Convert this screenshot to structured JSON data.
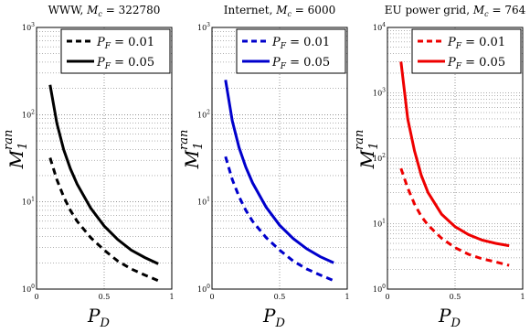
{
  "chart_data": [
    {
      "type": "line",
      "title": "WWW, M_c = 322780",
      "title_parts": {
        "prefix": "WWW, ",
        "symbol": "M",
        "subscript": "c",
        "suffix": " = 322780"
      },
      "xlabel": {
        "symbol": "P",
        "subscript": "D"
      },
      "ylabel": {
        "symbol": "M",
        "superscript": "ran",
        "subscript": "1"
      },
      "x_ticks": [
        "0",
        "0.5",
        "1"
      ],
      "xlim": [
        0,
        1
      ],
      "y_scale": "log",
      "ylim": [
        1,
        1000
      ],
      "y_ticks": [
        {
          "base": "10",
          "exp": "0"
        },
        {
          "base": "10",
          "exp": "1"
        },
        {
          "base": "10",
          "exp": "2"
        },
        {
          "base": "10",
          "exp": "3"
        }
      ],
      "grid": true,
      "legend_position": "top-right",
      "series": [
        {
          "name": "P_F = 0.01",
          "legend_label": {
            "symbol": "P",
            "subscript": "F",
            "value": " = 0.01"
          },
          "color": "#000000",
          "style": "dashed",
          "x": [
            0.1,
            0.15,
            0.2,
            0.25,
            0.3,
            0.4,
            0.5,
            0.6,
            0.7,
            0.8,
            0.9
          ],
          "y": [
            32,
            18,
            11.5,
            8,
            6,
            3.9,
            2.8,
            2.1,
            1.7,
            1.45,
            1.25
          ]
        },
        {
          "name": "P_F = 0.05",
          "legend_label": {
            "symbol": "P",
            "subscript": "F",
            "value": " = 0.05"
          },
          "color": "#000000",
          "style": "solid",
          "x": [
            0.1,
            0.15,
            0.2,
            0.25,
            0.3,
            0.4,
            0.5,
            0.6,
            0.7,
            0.8,
            0.9
          ],
          "y": [
            220,
            80,
            40,
            24,
            16,
            8.5,
            5.3,
            3.7,
            2.8,
            2.3,
            1.95
          ]
        }
      ]
    },
    {
      "type": "line",
      "title": "Internet, M_c = 6000",
      "title_parts": {
        "prefix": "Internet, ",
        "symbol": "M",
        "subscript": "c",
        "suffix": " = 6000"
      },
      "xlabel": {
        "symbol": "P",
        "subscript": "D"
      },
      "ylabel": {
        "symbol": "M",
        "superscript": "ran",
        "subscript": "1"
      },
      "x_ticks": [
        "0",
        "0.5",
        "1"
      ],
      "xlim": [
        0,
        1
      ],
      "y_scale": "log",
      "ylim": [
        1,
        1000
      ],
      "y_ticks": [
        {
          "base": "10",
          "exp": "0"
        },
        {
          "base": "10",
          "exp": "1"
        },
        {
          "base": "10",
          "exp": "2"
        },
        {
          "base": "10",
          "exp": "3"
        }
      ],
      "grid": true,
      "legend_position": "top-right",
      "series": [
        {
          "name": "P_F = 0.01",
          "legend_label": {
            "symbol": "P",
            "subscript": "F",
            "value": " = 0.01"
          },
          "color": "#0000cc",
          "style": "dashed",
          "x": [
            0.1,
            0.15,
            0.2,
            0.25,
            0.3,
            0.4,
            0.5,
            0.6,
            0.7,
            0.8,
            0.9
          ],
          "y": [
            33,
            18,
            11.5,
            8,
            6,
            3.9,
            2.8,
            2.1,
            1.7,
            1.45,
            1.25
          ]
        },
        {
          "name": "P_F = 0.05",
          "legend_label": {
            "symbol": "P",
            "subscript": "F",
            "value": " = 0.05"
          },
          "color": "#0000cc",
          "style": "solid",
          "x": [
            0.1,
            0.15,
            0.2,
            0.25,
            0.3,
            0.4,
            0.5,
            0.6,
            0.7,
            0.8,
            0.9
          ],
          "y": [
            250,
            85,
            42,
            25,
            16.5,
            8.7,
            5.4,
            3.8,
            2.9,
            2.35,
            2.0
          ]
        }
      ]
    },
    {
      "type": "line",
      "title": "EU power grid, M_c = 764",
      "title_parts": {
        "prefix": "EU power grid, ",
        "symbol": "M",
        "subscript": "c",
        "suffix": " = 764"
      },
      "xlabel": {
        "symbol": "P",
        "subscript": "D"
      },
      "ylabel": {
        "symbol": "M",
        "superscript": "ran",
        "subscript": "1"
      },
      "x_ticks": [
        "0",
        "0.5",
        "1"
      ],
      "xlim": [
        0,
        1
      ],
      "y_scale": "log",
      "ylim": [
        1,
        10000
      ],
      "y_ticks": [
        {
          "base": "10",
          "exp": "0"
        },
        {
          "base": "10",
          "exp": "1"
        },
        {
          "base": "10",
          "exp": "2"
        },
        {
          "base": "10",
          "exp": "3"
        },
        {
          "base": "10",
          "exp": "4"
        }
      ],
      "grid": true,
      "legend_position": "top-right",
      "series": [
        {
          "name": "P_F = 0.01",
          "legend_label": {
            "symbol": "P",
            "subscript": "F",
            "value": " = 0.01"
          },
          "color": "#ee0000",
          "style": "dashed",
          "x": [
            0.1,
            0.15,
            0.2,
            0.25,
            0.3,
            0.4,
            0.5,
            0.6,
            0.7,
            0.8,
            0.9
          ],
          "y": [
            70,
            35,
            20,
            13,
            9.5,
            6,
            4.3,
            3.4,
            2.9,
            2.6,
            2.3
          ]
        },
        {
          "name": "P_F = 0.05",
          "legend_label": {
            "symbol": "P",
            "subscript": "F",
            "value": " = 0.05"
          },
          "color": "#ee0000",
          "style": "solid",
          "x": [
            0.1,
            0.15,
            0.2,
            0.25,
            0.3,
            0.4,
            0.5,
            0.6,
            0.7,
            0.8,
            0.9
          ],
          "y": [
            3000,
            400,
            130,
            55,
            30,
            14,
            9,
            6.8,
            5.6,
            5.0,
            4.6
          ]
        }
      ]
    }
  ]
}
